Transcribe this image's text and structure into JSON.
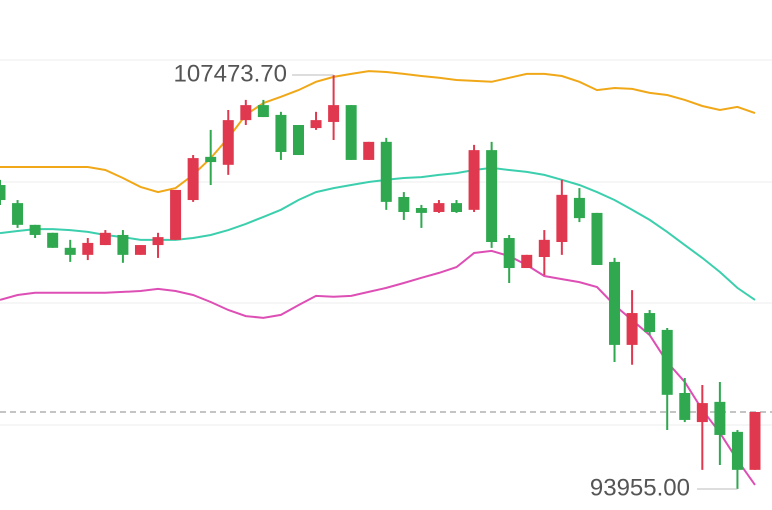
{
  "chart_data": {
    "type": "candlestick",
    "ylim": [
      93269,
      109922
    ],
    "up_color": "#e0394f",
    "down_color": "#2fa84f",
    "open": [
      103880,
      103290,
      102580,
      102320,
      101830,
      101600,
      101920,
      102250,
      101600,
      101920,
      102090,
      103390,
      104800,
      104540,
      106000,
      106490,
      106170,
      105840,
      105740,
      105940,
      106490,
      104700,
      105290,
      103490,
      103130,
      103000,
      103290,
      103070,
      105020,
      102150,
      101170,
      101530,
      102020,
      103460,
      102970,
      101370,
      98660,
      99700,
      99150,
      97090,
      96140,
      96800,
      95820,
      94580
    ],
    "high": [
      104050,
      103390,
      102580,
      102320,
      102090,
      102150,
      102410,
      102410,
      101920,
      102320,
      103720,
      104860,
      105680,
      106330,
      106660,
      106660,
      106270,
      105840,
      106270,
      107473.7,
      106490,
      105290,
      105420,
      103650,
      103230,
      103390,
      103390,
      105190,
      105290,
      102250,
      101600,
      102410,
      104050,
      103780,
      102970,
      101500,
      100450,
      99800,
      99210,
      97580,
      97350,
      97450,
      95880,
      96470
    ],
    "low": [
      103230,
      102480,
      102150,
      101830,
      101370,
      101430,
      101920,
      101340,
      101600,
      101500,
      102090,
      103330,
      103880,
      104210,
      105840,
      106100,
      104700,
      104860,
      105680,
      105350,
      104700,
      104700,
      103070,
      102740,
      102480,
      102970,
      102970,
      103000,
      101830,
      100680,
      101170,
      100940,
      101600,
      102670,
      101270,
      98100,
      98010,
      98980,
      95880,
      96140,
      94580,
      94740,
      93955,
      94580
    ],
    "close": [
      103390,
      102580,
      102250,
      101830,
      101600,
      101990,
      102320,
      101600,
      101920,
      102180,
      103720,
      104760,
      104630,
      106000,
      106490,
      106100,
      104960,
      104860,
      106000,
      106490,
      104700,
      105290,
      103330,
      103000,
      102970,
      103290,
      103000,
      105020,
      102020,
      101170,
      101600,
      102090,
      103560,
      102800,
      101270,
      98660,
      99700,
      99080,
      97030,
      96210,
      96760,
      95720,
      94580,
      96470
    ],
    "bands": [
      {
        "color": "#f0a818",
        "values": [
          104470,
          104470,
          104470,
          104470,
          104470,
          104470,
          104370,
          104110,
          103820,
          103650,
          103780,
          104210,
          104760,
          105420,
          106170,
          106560,
          106760,
          106980,
          107250,
          107410,
          107510,
          107600,
          107570,
          107510,
          107440,
          107380,
          107310,
          107280,
          107250,
          107380,
          107510,
          107510,
          107440,
          107250,
          106980,
          107050,
          107020,
          106890,
          106820,
          106660,
          106460,
          106330,
          106430,
          106230
        ]
      },
      {
        "color": "#3ccfae",
        "values": [
          102310,
          102380,
          102440,
          102440,
          102410,
          102350,
          102250,
          102180,
          102090,
          102090,
          102090,
          102150,
          102250,
          102410,
          102610,
          102840,
          103070,
          103390,
          103650,
          103780,
          103880,
          103980,
          104050,
          104110,
          104140,
          104210,
          104270,
          104370,
          104440,
          104370,
          104310,
          104210,
          104050,
          103880,
          103650,
          103390,
          103070,
          102740,
          102350,
          101920,
          101500,
          101040,
          100520,
          100130
        ]
      },
      {
        "color": "#dd4fb5",
        "values": [
          100130,
          100290,
          100360,
          100360,
          100360,
          100360,
          100360,
          100390,
          100420,
          100490,
          100420,
          100290,
          100060,
          99800,
          99600,
          99540,
          99640,
          99960,
          100260,
          100230,
          100260,
          100390,
          100520,
          100680,
          100850,
          101010,
          101200,
          101660,
          101730,
          101560,
          101270,
          100910,
          100810,
          100710,
          100550,
          99960,
          99470,
          98980,
          98100,
          97450,
          96540,
          95790,
          94900,
          94090
        ]
      }
    ],
    "max_label": {
      "value": 107473.7,
      "label": "107473.70"
    },
    "min_label": {
      "value": 93955,
      "label": "93955.00"
    },
    "last_price_line": true
  }
}
